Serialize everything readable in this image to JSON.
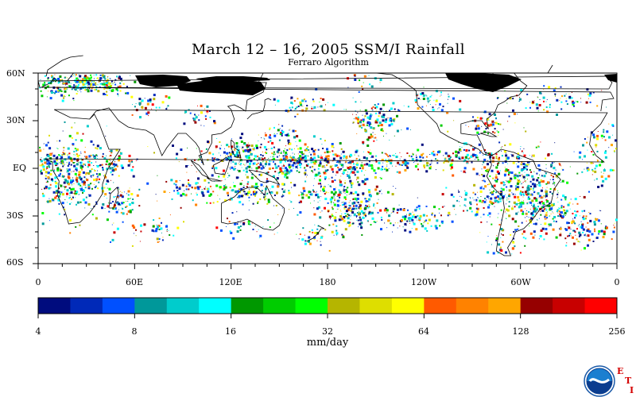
{
  "title": "March 12 – 16, 2005 SSM/I Rainfall",
  "subtitle": "Ferraro Algorithm",
  "map": {
    "lat_labels": [
      "60N",
      "30N",
      "EQ",
      "30S",
      "60S"
    ],
    "lon_labels": [
      "0",
      "60E",
      "120E",
      "180",
      "120W",
      "60W",
      "0"
    ]
  },
  "colorbar": {
    "units": "mm/day",
    "tick_labels": [
      "4",
      "8",
      "16",
      "32",
      "64",
      "128",
      "256"
    ],
    "colors": [
      "#000c7e",
      "#0029b8",
      "#0050ff",
      "#00989a",
      "#00cccc",
      "#00ffff",
      "#009800",
      "#00cc00",
      "#00ff00",
      "#b5b500",
      "#dede00",
      "#ffff00",
      "#ff5a00",
      "#ff8200",
      "#ffa600",
      "#960000",
      "#c80000",
      "#ff0000"
    ]
  },
  "logos": {
    "agency": "NOAA",
    "eti_letters": [
      "E",
      "T",
      "I"
    ]
  }
}
